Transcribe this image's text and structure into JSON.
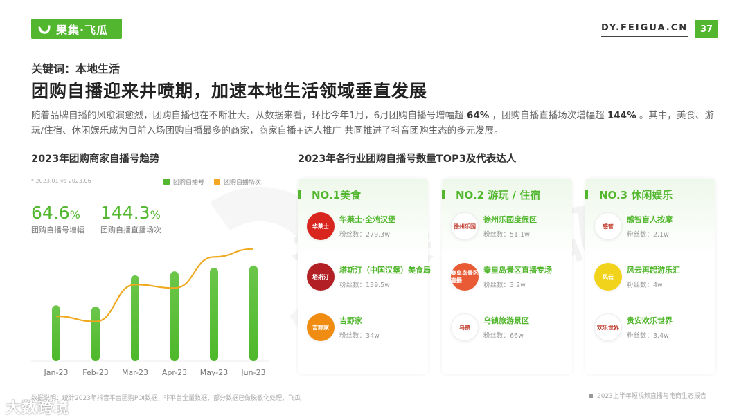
{
  "header": {
    "logo_text": "果集·飞瓜",
    "site": "DY.FEIGUA.CN",
    "page_number": "37",
    "brand_color": "#52b72e"
  },
  "kicker": "关键词：本地生活",
  "headline": "团购自播迎来井喷期，加速本地生活领域垂直发展",
  "description": {
    "part1": "随着品牌自播的风愈演愈烈，团购自播也在不断壮大。从数据来看，环比今年1月，6月团购自播号增幅超 ",
    "bold1": "64%",
    "part2": " ，团购自播直播场次增幅超 ",
    "bold2": "144%",
    "part3": " 。其中，美食、游玩/住宿、休闲娱乐成为目前入场团购自播最多的商家，商家自播+达人推广 共同推进了抖音团购生态的多元发展。"
  },
  "left_section": {
    "title": "2023年团购商家自播号趋势",
    "note": "* 2023.01 vs 2023.06",
    "legend": [
      {
        "label": "团购自播号",
        "color": "#52b72e"
      },
      {
        "label": "团购自播场次",
        "color": "#f5a623"
      }
    ],
    "kpis": [
      {
        "value": "64.6",
        "unit": "%",
        "label": "团购自播号增幅"
      },
      {
        "value": "144.3",
        "unit": "%",
        "label": "团购自播直播场次"
      }
    ]
  },
  "chart_data": {
    "type": "bar",
    "title": "2023年团购商家自播号趋势",
    "subtitle": "* 2023.01 vs 2023.06",
    "categories": [
      "Jan-23",
      "Feb-23",
      "Mar-23",
      "Apr-23",
      "May-23",
      "Jun-23"
    ],
    "series": [
      {
        "name": "团购自播号",
        "type": "bar",
        "color": "#52b72e",
        "values": [
          97,
          95,
          149,
          156,
          162,
          166
        ]
      },
      {
        "name": "团购自播场次",
        "type": "line",
        "color": "#f5a623",
        "values": [
          78,
          69,
          133,
          127,
          181,
          195
        ]
      }
    ],
    "annotations": [
      "64.6% 团购自播号增幅",
      "144.3% 团购自播直播场次"
    ],
    "xlabel": "",
    "ylabel": "",
    "ylim": [
      0,
      200
    ],
    "grid": false,
    "legend_position": "top-right",
    "notes": "Values are relative pixel-height estimates; no y-axis shown"
  },
  "right_section": {
    "title": "2023年各行业团购自播号数量TOP3及代表达人",
    "watermark": "果集飞瓜",
    "cards": [
      {
        "title": "NO.1美食",
        "items": [
          {
            "name": "华莱士·全鸡汉堡",
            "fans": "粉丝数：279.3w",
            "avatar_text": "华莱士",
            "avatar_color": "#d8261e"
          },
          {
            "name": "塔斯汀（中国汉堡）美食局",
            "fans": "粉丝数：139.5w",
            "avatar_text": "塔斯汀",
            "avatar_color": "#b21f24"
          },
          {
            "name": "吉野家",
            "fans": "粉丝数：34w",
            "avatar_text": "吉野家",
            "avatar_color": "#f08c12"
          }
        ]
      },
      {
        "title": "NO.2 游玩 / 住宿",
        "items": [
          {
            "name": "徐州乐园度假区",
            "fans": "粉丝数：51.1w",
            "avatar_text": "徐州乐园",
            "avatar_color": "#ffffff"
          },
          {
            "name": "秦皇岛景区直播专场",
            "fans": "粉丝数：3.2w",
            "avatar_text": "秦皇岛景区直播",
            "avatar_color": "#e85b34"
          },
          {
            "name": "乌镇旅游景区",
            "fans": "粉丝数：66w",
            "avatar_text": "乌镇",
            "avatar_color": "#ffffff"
          }
        ]
      },
      {
        "title": "NO.3 休闲娱乐",
        "items": [
          {
            "name": "感智盲人按摩",
            "fans": "粉丝数：2.1w",
            "avatar_text": "感智",
            "avatar_color": "#ffffff"
          },
          {
            "name": "风云再起游乐汇",
            "fans": "粉丝数：4w",
            "avatar_text": "风云",
            "avatar_color": "#f2d31b"
          },
          {
            "name": "贵安欢乐世界",
            "fans": "粉丝数：3.4w",
            "avatar_text": "欢乐世界",
            "avatar_color": "#ffffff"
          }
        ]
      }
    ]
  },
  "footer": {
    "note": "数据说明：统计2023年抖音平台团购POI数据，非平台全量数据，部分数据已做脱敏化处理，飞瓜",
    "report": "2023上半年短视频直播与电商生态报告",
    "corner_watermark": "大数跨境"
  }
}
